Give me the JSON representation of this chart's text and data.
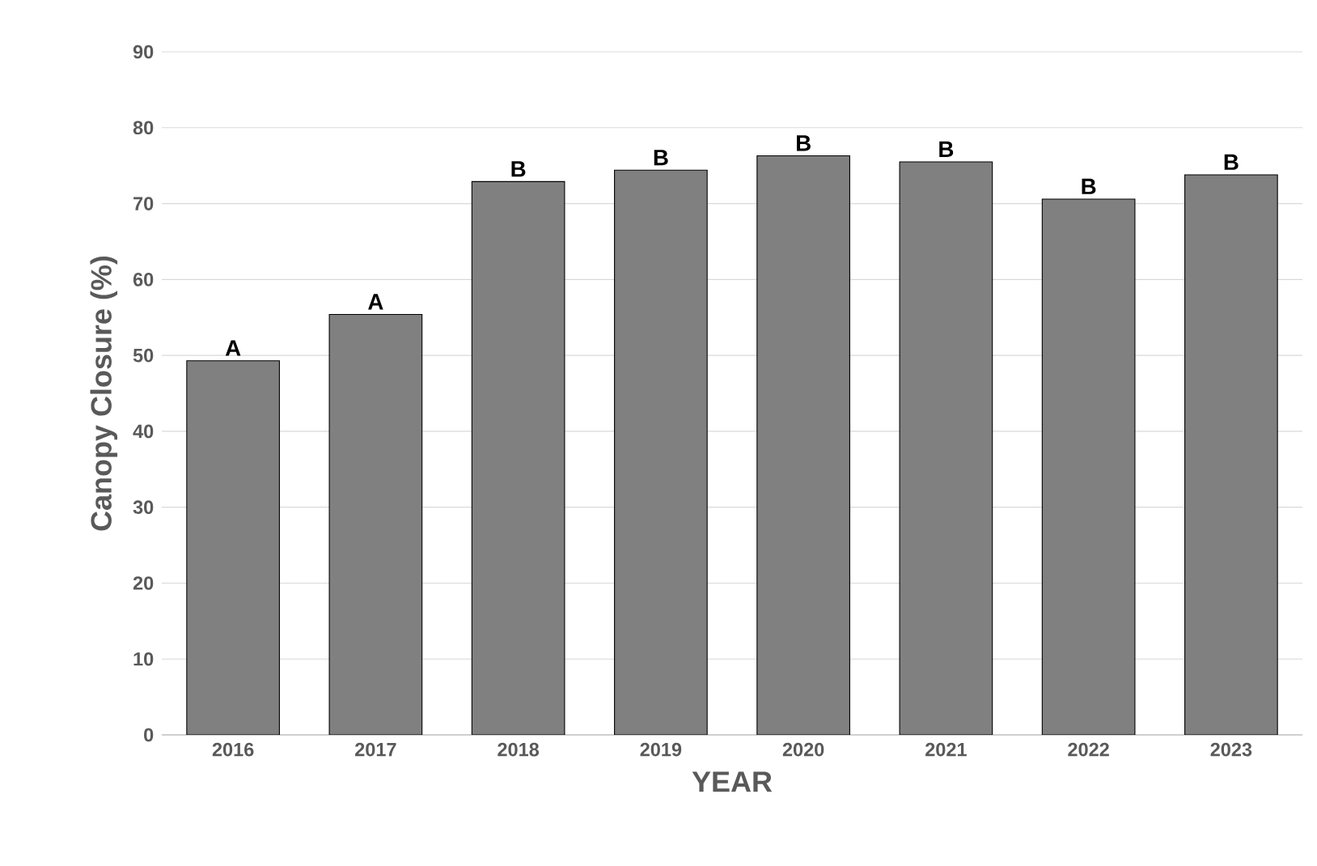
{
  "chart_data": {
    "type": "bar",
    "xlabel": "YEAR",
    "ylabel": "Canopy Closure (%)",
    "categories": [
      "2016",
      "2017",
      "2018",
      "2019",
      "2020",
      "2021",
      "2022",
      "2023"
    ],
    "values": [
      49.3,
      55.4,
      72.9,
      74.4,
      76.3,
      75.5,
      70.6,
      73.8
    ],
    "color": "#808080",
    "ylim": [
      0,
      90
    ],
    "yticks": [
      0,
      10,
      20,
      30,
      40,
      50,
      60,
      70,
      80,
      90
    ],
    "grid": "y",
    "annotations": [
      {
        "text": "A",
        "x": "2016",
        "y": 49.3
      },
      {
        "text": "A",
        "x": "2017",
        "y": 55.4
      },
      {
        "text": "B",
        "x": "2018",
        "y": 72.9
      },
      {
        "text": "B",
        "x": "2019",
        "y": 74.4
      },
      {
        "text": "B",
        "x": "2020",
        "y": 76.3
      },
      {
        "text": "B",
        "x": "2021",
        "y": 75.5
      },
      {
        "text": "B",
        "x": "2022",
        "y": 70.6
      },
      {
        "text": "B",
        "x": "2023",
        "y": 73.8
      }
    ]
  }
}
